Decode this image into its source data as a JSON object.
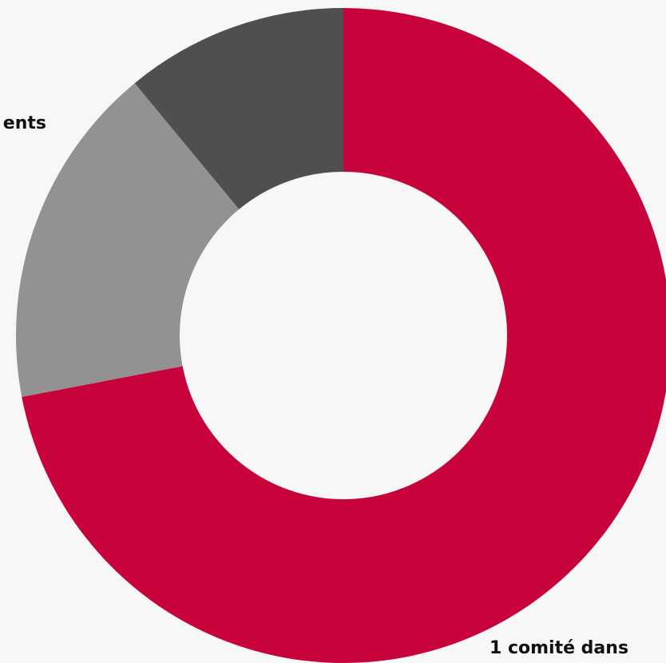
{
  "chart_data": {
    "type": "donut",
    "categories": [
      "1 comité dans",
      "ents",
      null
    ],
    "values": [
      72,
      17,
      11
    ],
    "colors": [
      "#c8023a",
      "#929292",
      "#4f4f4f"
    ]
  }
}
